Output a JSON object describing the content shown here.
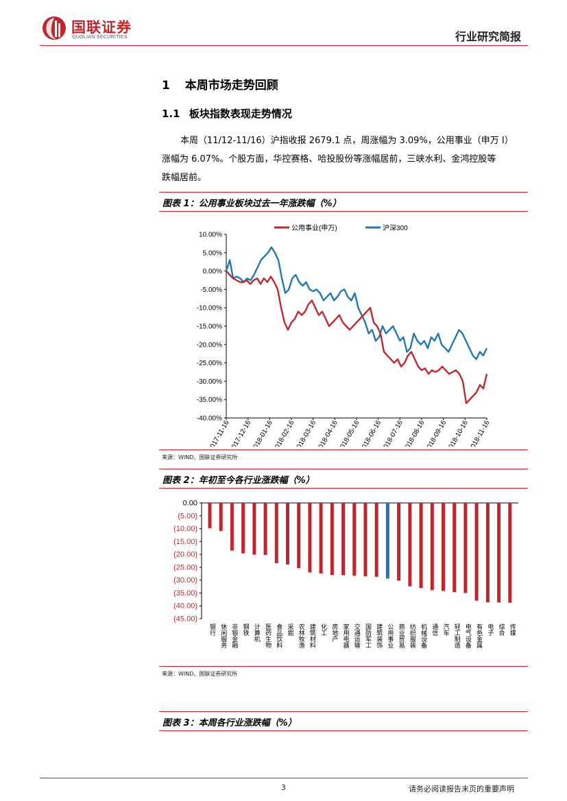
{
  "header": {
    "logo_cn": "国联证券",
    "logo_en": "GUOLIAN SECURITIES",
    "doc_type": "行业研究简报"
  },
  "section1": {
    "number": "1",
    "title": "本周市场走势回顾"
  },
  "section1_1": {
    "number": "1.1",
    "title": "板块指数表现走势情况"
  },
  "paragraph": [
    "本周（11/12-11/16）沪指收报 2679.1 点，周涨幅为 3.09%，公用事业（申万 I）",
    "涨幅为 6.07%。个股方面，华控赛格、哈投股份等涨幅居前，三峡水利、金鸿控股等",
    "跌幅居前。"
  ],
  "figure1": {
    "title": "图表 1：公用事业板块过去一年涨跌幅（%）",
    "source": "来源：WIND、国联证券研究所"
  },
  "figure2": {
    "title": "图表 2：年初至今各行业涨跌幅（%）",
    "source": "来源：WIND、国联证券研究所"
  },
  "figure3": {
    "title": "图表 3：本周各行业涨跌幅（%）"
  },
  "footer": {
    "page": "3",
    "notice": "请务必阅读报告末页的重要声明"
  },
  "colors": {
    "brand_red": "#c0272d",
    "line_blue": "#1f77b4"
  },
  "chart_data": [
    {
      "type": "line",
      "title": "",
      "legend_position": "top",
      "ylim": [
        -40,
        10
      ],
      "yticks": [
        "10.00%",
        "5.00%",
        "0.00%",
        "-5.00%",
        "-10.00%",
        "-15.00%",
        "-20.00%",
        "-25.00%",
        "-30.00%",
        "-35.00%",
        "-40.00%"
      ],
      "ytick_values": [
        10,
        5,
        0,
        -5,
        -10,
        -15,
        -20,
        -25,
        -30,
        -35,
        -40
      ],
      "xticks": [
        "2017-11-16",
        "2017-12-16",
        "2018-01-16",
        "2018-02-16",
        "2018-03-16",
        "2018-04-16",
        "2018-05-16",
        "2018-06-16",
        "2018-07-16",
        "2018-08-16",
        "2018-09-16",
        "2018-10-16",
        "2018-11-16"
      ],
      "series": [
        {
          "name": "公用事业(申万)",
          "color": "#c0272d",
          "values": [
            0,
            -1,
            -2,
            -2.5,
            -3,
            -3,
            -2.5,
            -3.5,
            -2.5,
            -2,
            -3.5,
            -2,
            -3,
            -1.5,
            -3,
            -5,
            -10,
            -14,
            -16,
            -14,
            -13,
            -11,
            -12,
            -11,
            -9,
            -8,
            -10,
            -12,
            -11,
            -13,
            -15,
            -14,
            -13,
            -12,
            -14,
            -15,
            -16,
            -15,
            -14,
            -13,
            -12,
            -11,
            -10,
            -14,
            -15,
            -17,
            -22,
            -23,
            -24,
            -25,
            -24,
            -26,
            -25,
            -23,
            -22,
            -24,
            -26,
            -27,
            -26.5,
            -28,
            -27,
            -27.5,
            -27,
            -26,
            -27,
            -28,
            -27.5,
            -27,
            -28,
            -30,
            -36,
            -35,
            -34,
            -33,
            -31,
            -32,
            -28
          ]
        },
        {
          "name": "沪深300",
          "color": "#1f77b4",
          "values": [
            0,
            3,
            -2,
            -1.5,
            -2,
            -3,
            -2,
            -2.5,
            -1,
            1,
            3,
            4,
            5,
            6.5,
            5,
            3,
            -2,
            -6,
            -5,
            -2,
            -1,
            -3,
            -4,
            -3,
            -5,
            -5.5,
            -5,
            -6,
            -8,
            -7,
            -6,
            -8,
            -7,
            -5.5,
            -5,
            -7,
            -8,
            -6,
            -10,
            -12,
            -14,
            -17,
            -16,
            -19,
            -18,
            -15,
            -17,
            -16,
            -15,
            -17,
            -19,
            -18,
            -22,
            -21,
            -17,
            -19,
            -20,
            -19,
            -21,
            -18,
            -19,
            -17,
            -20,
            -21,
            -22,
            -20,
            -18,
            -16,
            -17,
            -19,
            -21,
            -23,
            -24,
            -22,
            -23,
            -21
          ]
        }
      ]
    },
    {
      "type": "bar",
      "title": "",
      "ylim": [
        -45,
        0
      ],
      "yticks": [
        "0.00",
        "(5.00)",
        "(10.00)",
        "(15.00)",
        "(20.00)",
        "(25.00)",
        "(30.00)",
        "(35.00)",
        "(40.00)",
        "(45.00)"
      ],
      "ytick_values": [
        0,
        -5,
        -10,
        -15,
        -20,
        -25,
        -30,
        -35,
        -40,
        -45
      ],
      "categories": [
        "银行",
        "休闲服务",
        "非银金融",
        "钢铁",
        "计算机",
        "医药生物",
        "食品饮料",
        "采掘",
        "农林牧渔",
        "建筑材料",
        "化工",
        "房地产",
        "家用电器",
        "交通运输",
        "国防军工",
        "建筑装饰",
        "公用事业",
        "商业贸易",
        "纺织服装",
        "机械设备",
        "通信",
        "汽车",
        "轻工制造",
        "电气设备",
        "有色金属",
        "电子",
        "综合",
        "传媒"
      ],
      "values": [
        -9.8,
        -10.9,
        -18.5,
        -19.6,
        -20.1,
        -20.2,
        -23.4,
        -23.9,
        -25.3,
        -27.0,
        -27.4,
        -28.0,
        -28.1,
        -28.3,
        -28.5,
        -28.7,
        -29.4,
        -30.2,
        -32.4,
        -33.1,
        -33.9,
        -34.2,
        -34.7,
        -35.0,
        -38.0,
        -38.6,
        -38.7,
        -38.8
      ],
      "highlight_index": 16,
      "bar_color": "#c0272d",
      "highlight_color": "#1f77b4"
    }
  ]
}
